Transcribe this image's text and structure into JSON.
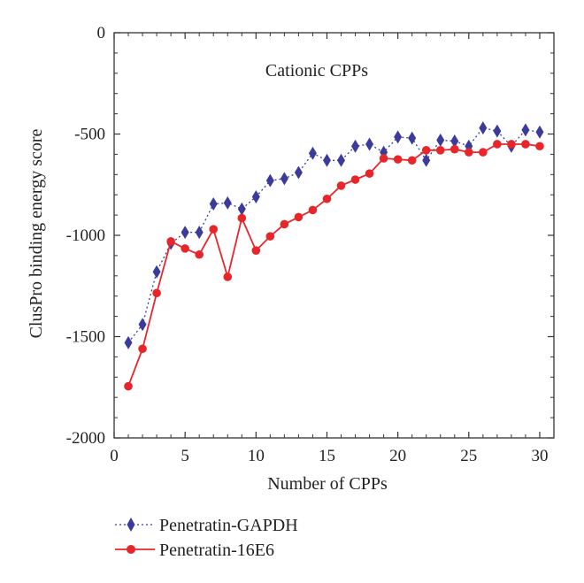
{
  "chart_data": {
    "type": "line",
    "title": "Cationic CPPs",
    "xlabel": "Number of CPPs",
    "ylabel": "ClusPro binding energy score",
    "xlim": [
      0,
      31
    ],
    "ylim": [
      -2000,
      0
    ],
    "xticks": [
      "0",
      "5",
      "10",
      "15",
      "20",
      "25",
      "30"
    ],
    "yticks": [
      "0",
      "-500",
      "-1000",
      "-1500",
      "-2000"
    ],
    "grid": false,
    "legend_position": "bottom",
    "x": [
      1,
      2,
      3,
      4,
      5,
      6,
      7,
      8,
      9,
      10,
      11,
      12,
      13,
      14,
      15,
      16,
      17,
      18,
      19,
      20,
      21,
      22,
      23,
      24,
      25,
      26,
      27,
      28,
      29,
      30
    ],
    "series": [
      {
        "name": "Penetratin-GAPDH",
        "color": "#3b3b9c",
        "marker": "diamond",
        "line_style": "dotted",
        "values": [
          -1530,
          -1440,
          -1180,
          -1040,
          -985,
          -985,
          -845,
          -840,
          -870,
          -810,
          -730,
          -720,
          -690,
          -595,
          -630,
          -630,
          -560,
          -550,
          -590,
          -515,
          -520,
          -630,
          -530,
          -535,
          -560,
          -470,
          -485,
          -560,
          -480,
          -490
        ]
      },
      {
        "name": "Penetratin-16E6",
        "color": "#e8262a",
        "marker": "circle",
        "line_style": "solid",
        "values": [
          -1745,
          -1560,
          -1285,
          -1030,
          -1065,
          -1095,
          -970,
          -1205,
          -915,
          -1075,
          -1005,
          -945,
          -910,
          -875,
          -820,
          -755,
          -725,
          -695,
          -620,
          -625,
          -630,
          -580,
          -580,
          -575,
          -590,
          -590,
          -550,
          -550,
          -550,
          -560
        ]
      }
    ]
  }
}
